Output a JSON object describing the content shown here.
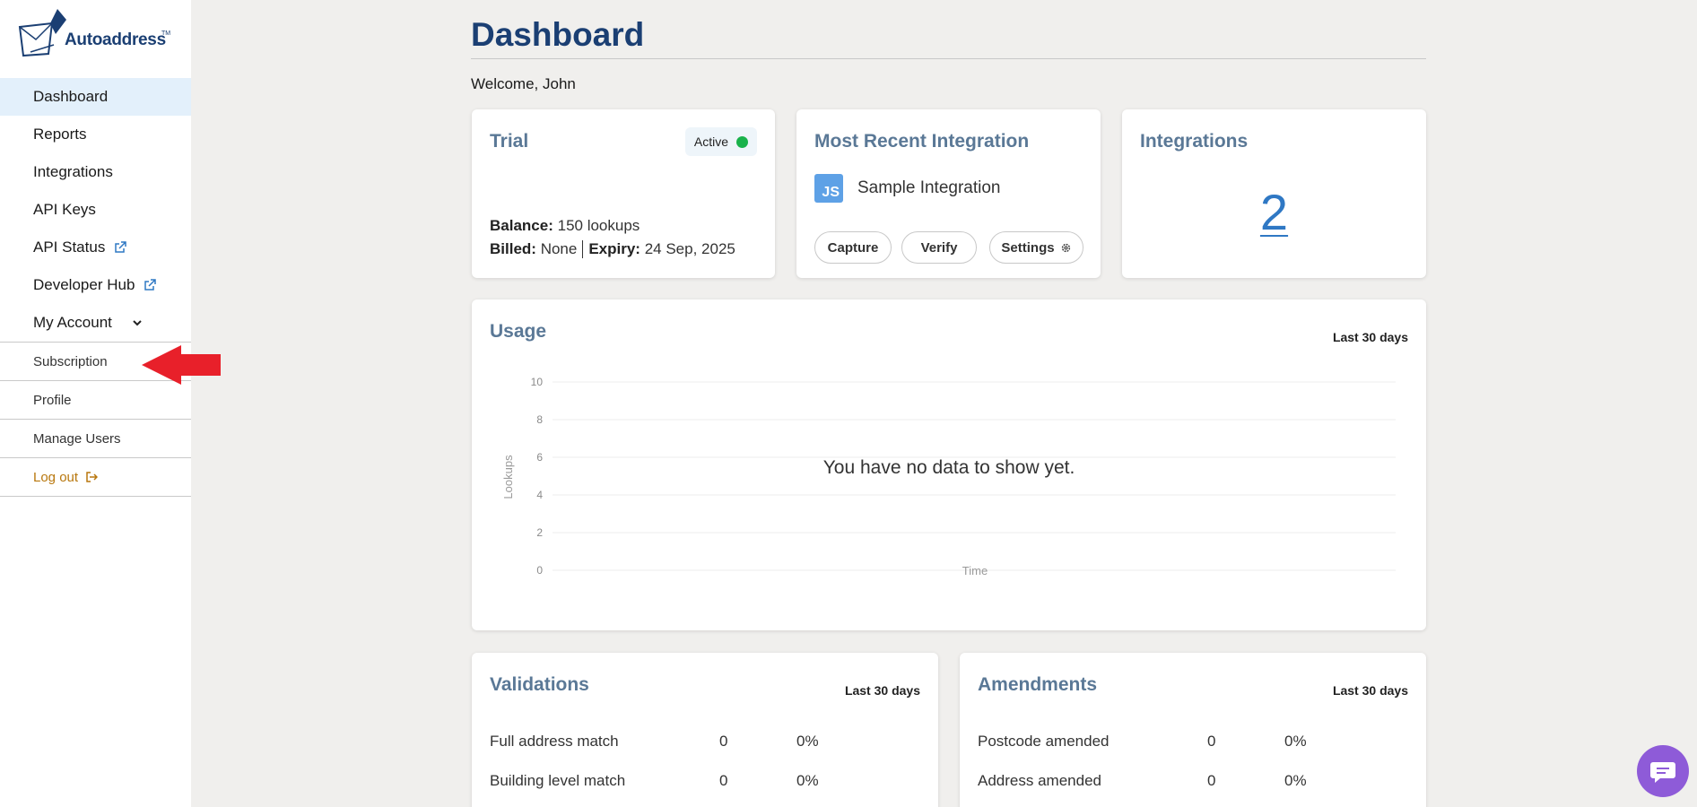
{
  "app": {
    "brand": "Autoaddress",
    "trademark": "TM"
  },
  "sidebar": {
    "items": [
      {
        "label": "Dashboard",
        "active": true
      },
      {
        "label": "Reports"
      },
      {
        "label": "Integrations"
      },
      {
        "label": "API Keys"
      },
      {
        "label": "API Status",
        "icon": "external-link-icon"
      },
      {
        "label": "Developer Hub",
        "icon": "external-link-icon"
      },
      {
        "label": "My Account",
        "icon": "chevron-down-icon"
      }
    ],
    "subitems": [
      {
        "label": "Subscription"
      },
      {
        "label": "Profile"
      },
      {
        "label": "Manage Users"
      },
      {
        "label": "Log out",
        "icon": "logout-icon"
      }
    ]
  },
  "header": {
    "title": "Dashboard",
    "welcome": "Welcome, John"
  },
  "trial": {
    "title": "Trial",
    "status": "Active",
    "status_color": "#19b24b",
    "balance_label": "Balance:",
    "balance_value": "150 lookups",
    "billed_label": "Billed:",
    "billed_value": "None",
    "expiry_label": "Expiry:",
    "expiry_value": "24 Sep, 2025"
  },
  "recent_integration": {
    "title": "Most Recent Integration",
    "icon_text": "JS",
    "name": "Sample Integration",
    "buttons": {
      "capture": "Capture",
      "verify": "Verify",
      "settings": "Settings"
    }
  },
  "integrations": {
    "title": "Integrations",
    "count": "2"
  },
  "usage": {
    "title": "Usage",
    "range": "Last 30 days",
    "empty_message": "You have no data to show yet.",
    "y_axis_label": "Lookups",
    "x_axis_label": "Time",
    "y_ticks": [
      "10",
      "8",
      "6",
      "4",
      "2",
      "0"
    ]
  },
  "validations": {
    "title": "Validations",
    "range": "Last 30 days",
    "rows": [
      {
        "label": "Full address match",
        "count": "0",
        "percent": "0%"
      },
      {
        "label": "Building level match",
        "count": "0",
        "percent": "0%"
      }
    ]
  },
  "amendments": {
    "title": "Amendments",
    "range": "Last 30 days",
    "rows": [
      {
        "label": "Postcode amended",
        "count": "0",
        "percent": "0%"
      },
      {
        "label": "Address amended",
        "count": "0",
        "percent": "0%"
      }
    ]
  },
  "colors": {
    "brand": "#1b3f73",
    "accent": "#5a7896",
    "link": "#2f78c4",
    "annotation_arrow": "#e8202a",
    "chat": "#8e5bd8"
  }
}
